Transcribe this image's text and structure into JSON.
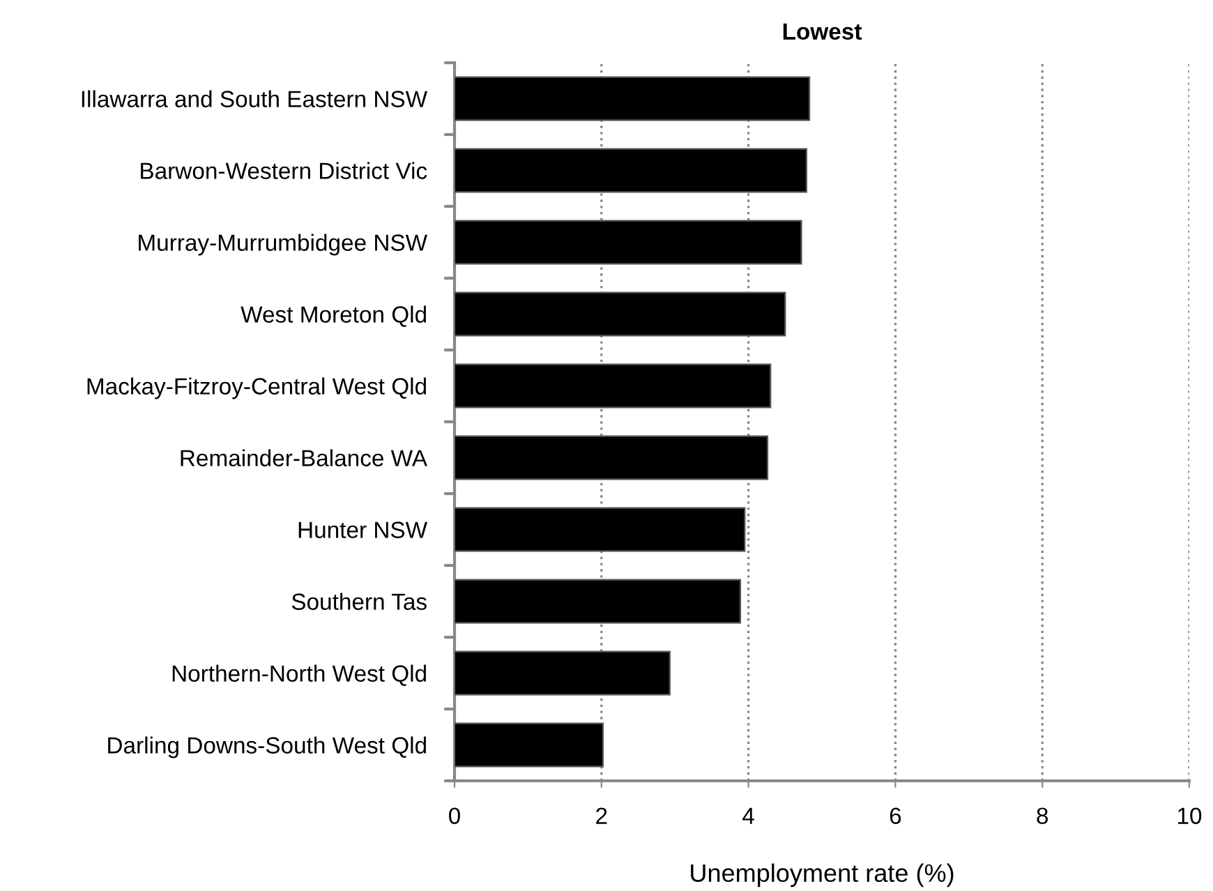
{
  "chart_data": {
    "type": "bar",
    "orientation": "horizontal",
    "title": "Lowest",
    "xlabel": "Unemployment rate (%)",
    "categories": [
      "Illawarra and South Eastern NSW",
      "Barwon-Western District Vic",
      "Murray-Murrumbidgee NSW",
      "West Moreton Qld",
      "Mackay-Fitzroy-Central West Qld",
      "Remainder-Balance WA",
      "Hunter NSW",
      "Southern Tas",
      "Northern-North West Qld",
      "Darling Downs-South West Qld"
    ],
    "values": [
      4.83,
      4.79,
      4.72,
      4.5,
      4.3,
      4.26,
      3.95,
      3.89,
      2.93,
      2.02
    ],
    "color": "#000000",
    "xlim": [
      0,
      10
    ],
    "xticks": [
      0,
      2,
      4,
      6,
      8,
      10
    ],
    "grid": "x",
    "line_style": "dotted",
    "legend": false
  }
}
